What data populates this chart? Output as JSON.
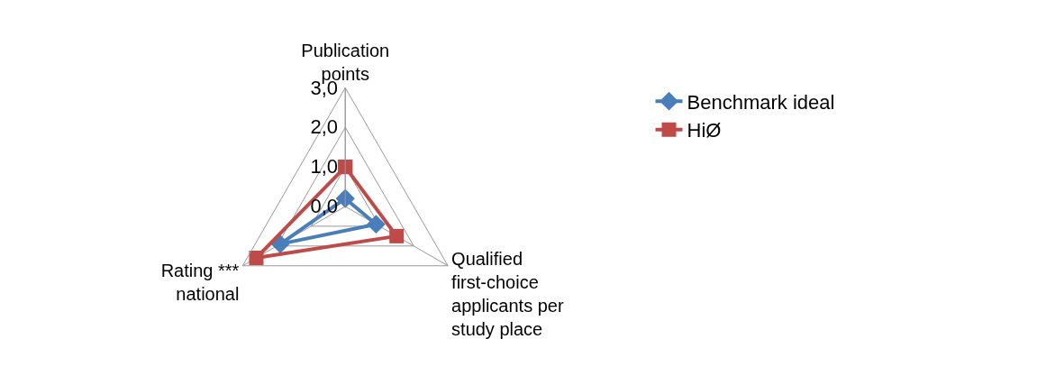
{
  "chart_data": {
    "type": "radar",
    "categories": [
      "Publication points",
      "Qualified first-choice applicants per study place",
      "Rating *** national"
    ],
    "series": [
      {
        "name": "Benchmark ideal",
        "color": "#4a7ebb",
        "marker": "diamond",
        "values": [
          0.2,
          0.9,
          1.9
        ]
      },
      {
        "name": "HiØ",
        "color": "#be4b48",
        "marker": "square",
        "values": [
          1.0,
          1.5,
          2.6
        ]
      }
    ],
    "ylim": [
      0,
      3
    ],
    "yticks": [
      {
        "value": 0,
        "label": "0,0"
      },
      {
        "value": 1,
        "label": "1,0"
      },
      {
        "value": 2,
        "label": "2,0"
      },
      {
        "value": 3,
        "label": "3,0"
      }
    ],
    "grid": true,
    "legend": "right"
  }
}
